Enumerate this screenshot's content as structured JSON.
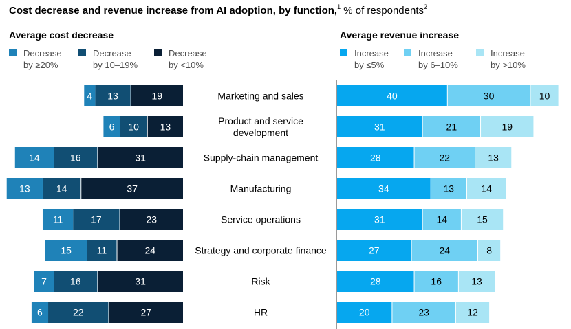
{
  "title": {
    "main": "Cost decrease and revenue increase from AI adoption, by function,",
    "footnote1": "1",
    "rest": " % of respondents",
    "footnote2": "2"
  },
  "colors": {
    "cost": [
      "#1f82b8",
      "#114e73",
      "#0a1f35"
    ],
    "revenue": [
      "#06a7ef",
      "#6fd0f3",
      "#a9e5f5"
    ],
    "divider": "#9a9a9a",
    "label_dark": "#ffffff",
    "label_light": "#000000"
  },
  "chart_data": [
    {
      "type": "bar",
      "orientation": "horizontal",
      "stacked": true,
      "direction": "leftward",
      "title": "Average cost decrease",
      "categories": [
        "Marketing and sales",
        "Product and service development",
        "Supply-chain management",
        "Manufacturing",
        "Service operations",
        "Strategy and corporate finance",
        "Risk",
        "HR"
      ],
      "series": [
        {
          "name": "Decrease by ≥20%",
          "line1": "Decrease",
          "line2": "by ≥20%",
          "values": [
            4,
            6,
            14,
            13,
            11,
            15,
            7,
            6
          ]
        },
        {
          "name": "Decrease by 10–19%",
          "line1": "Decrease",
          "line2": "by 10–19%",
          "values": [
            13,
            10,
            16,
            14,
            17,
            11,
            16,
            22
          ]
        },
        {
          "name": "Decrease by <10%",
          "line1": "Decrease",
          "line2": "by <10%",
          "values": [
            19,
            13,
            31,
            37,
            23,
            24,
            31,
            27
          ]
        }
      ]
    },
    {
      "type": "bar",
      "orientation": "horizontal",
      "stacked": true,
      "direction": "rightward",
      "title": "Average revenue increase",
      "categories": [
        "Marketing and sales",
        "Product and service development",
        "Supply-chain management",
        "Manufacturing",
        "Service operations",
        "Strategy and corporate finance",
        "Risk",
        "HR"
      ],
      "series": [
        {
          "name": "Increase by ≤5%",
          "line1": "Increase",
          "line2": "by ≤5%",
          "values": [
            40,
            31,
            28,
            34,
            31,
            27,
            28,
            20
          ]
        },
        {
          "name": "Increase by 6–10%",
          "line1": "Increase",
          "line2": "by 6–10%",
          "values": [
            30,
            21,
            22,
            13,
            14,
            24,
            16,
            23
          ]
        },
        {
          "name": "Increase by >10%",
          "line1": "Increase",
          "line2": "by >10%",
          "values": [
            10,
            19,
            13,
            14,
            15,
            8,
            13,
            12
          ]
        }
      ]
    }
  ],
  "category_labels": [
    [
      "Marketing and sales"
    ],
    [
      "Product and service",
      "development"
    ],
    [
      "Supply-chain management"
    ],
    [
      "Manufacturing"
    ],
    [
      "Service operations"
    ],
    [
      "Strategy and corporate finance"
    ],
    [
      "Risk"
    ],
    [
      "HR"
    ]
  ]
}
